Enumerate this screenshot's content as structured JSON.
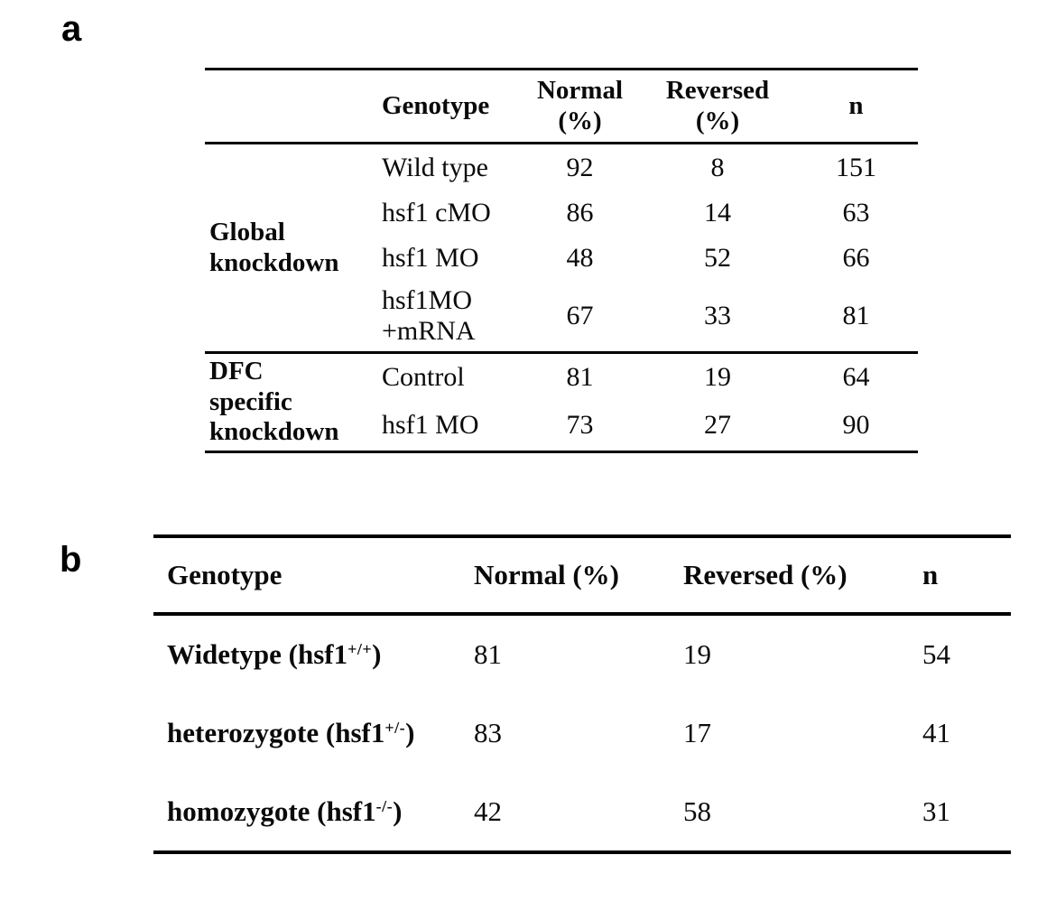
{
  "panels": {
    "a": "a",
    "b": "b"
  },
  "table_a": {
    "header": {
      "genotype": "Genotype",
      "normal": "Normal\n(%)",
      "reversed": "Reversed\n(%)",
      "n": "n"
    },
    "group_labels": {
      "global": "Global\nknockdown",
      "dfc": "DFC\nspecific\nknockdown"
    },
    "rows": [
      {
        "genotype": "Wild type",
        "normal": "92",
        "reversed": "8",
        "n": "151"
      },
      {
        "genotype": "hsf1 cMO",
        "normal": "86",
        "reversed": "14",
        "n": "63"
      },
      {
        "genotype": "hsf1 MO",
        "normal": "48",
        "reversed": "52",
        "n": "66"
      },
      {
        "genotype": "hsf1MO\n+mRNA",
        "normal": "67",
        "reversed": "33",
        "n": "81"
      },
      {
        "genotype": "Control",
        "normal": "81",
        "reversed": "19",
        "n": "64"
      },
      {
        "genotype": "hsf1 MO",
        "normal": "73",
        "reversed": "27",
        "n": "90"
      }
    ]
  },
  "table_b": {
    "header": {
      "genotype": "Genotype",
      "normal": "Normal (%)",
      "reversed": "Reversed (%)",
      "n": "n"
    },
    "rows": [
      {
        "label_prefix": "Widetype (hsf1",
        "label_sup": "+/+",
        "label_suffix": ")",
        "normal": "81",
        "reversed": "19",
        "n": "54"
      },
      {
        "label_prefix": "heterozygote (hsf1",
        "label_sup": "+/-",
        "label_suffix": ")",
        "normal": "83",
        "reversed": "17",
        "n": "41"
      },
      {
        "label_prefix": "homozygote (hsf1",
        "label_sup": "-/-",
        "label_suffix": ")",
        "normal": "42",
        "reversed": "58",
        "n": "31"
      }
    ]
  }
}
